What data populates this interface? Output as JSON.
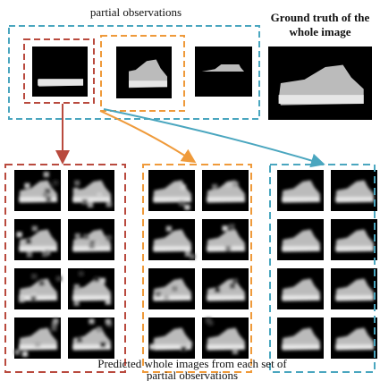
{
  "top": {
    "partial_label": "partial observations",
    "ground_truth_lines": [
      "Ground truth of the",
      "whole image"
    ]
  },
  "bottom": {
    "caption_lines": [
      "Predicted whole images from each set of",
      "partial observations"
    ]
  }
}
